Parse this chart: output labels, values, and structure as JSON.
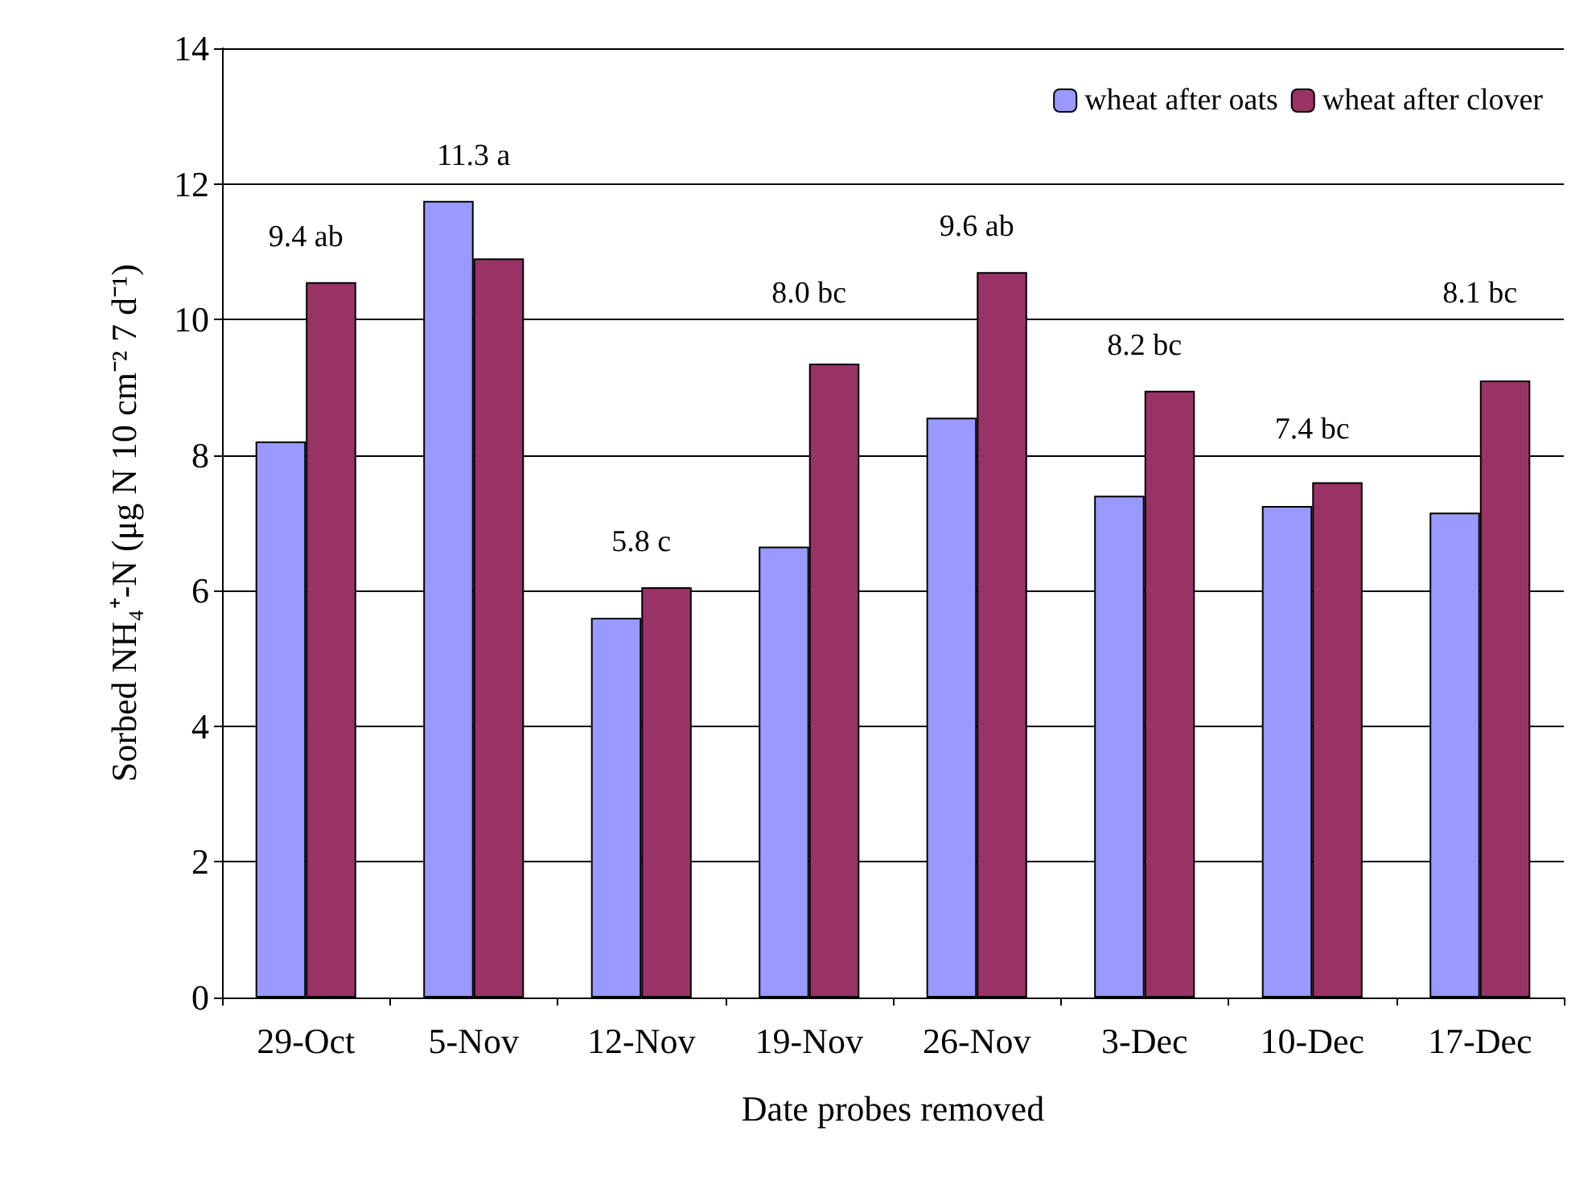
{
  "chart_data": {
    "type": "bar",
    "xlabel": "Date probes removed",
    "ylabel": "Sorbed NH₄⁺-N (μg N 10 cm⁻² 7 d⁻¹)",
    "categories": [
      "29-Oct",
      "5-Nov",
      "12-Nov",
      "19-Nov",
      "26-Nov",
      "3-Dec",
      "10-Dec",
      "17-Dec"
    ],
    "series": [
      {
        "name": "wheat after oats",
        "color": "#9999ff",
        "values": [
          8.2,
          11.75,
          5.6,
          6.65,
          8.55,
          7.4,
          7.25,
          7.15
        ]
      },
      {
        "name": "wheat after clover",
        "color": "#993366",
        "values": [
          10.55,
          10.9,
          6.05,
          9.35,
          10.7,
          8.95,
          7.6,
          9.1
        ]
      }
    ],
    "ylim": [
      0,
      14
    ],
    "yticks": [
      0,
      2,
      4,
      6,
      8,
      10,
      12,
      14
    ],
    "grid": "y",
    "legend": "top right",
    "annotations": [
      "9.4 ab",
      "11.3 a",
      "5.8 c",
      "8.0 bc",
      "9.6 ab",
      "8.2 bc",
      "7.4 bc",
      "8.1 bc"
    ]
  }
}
